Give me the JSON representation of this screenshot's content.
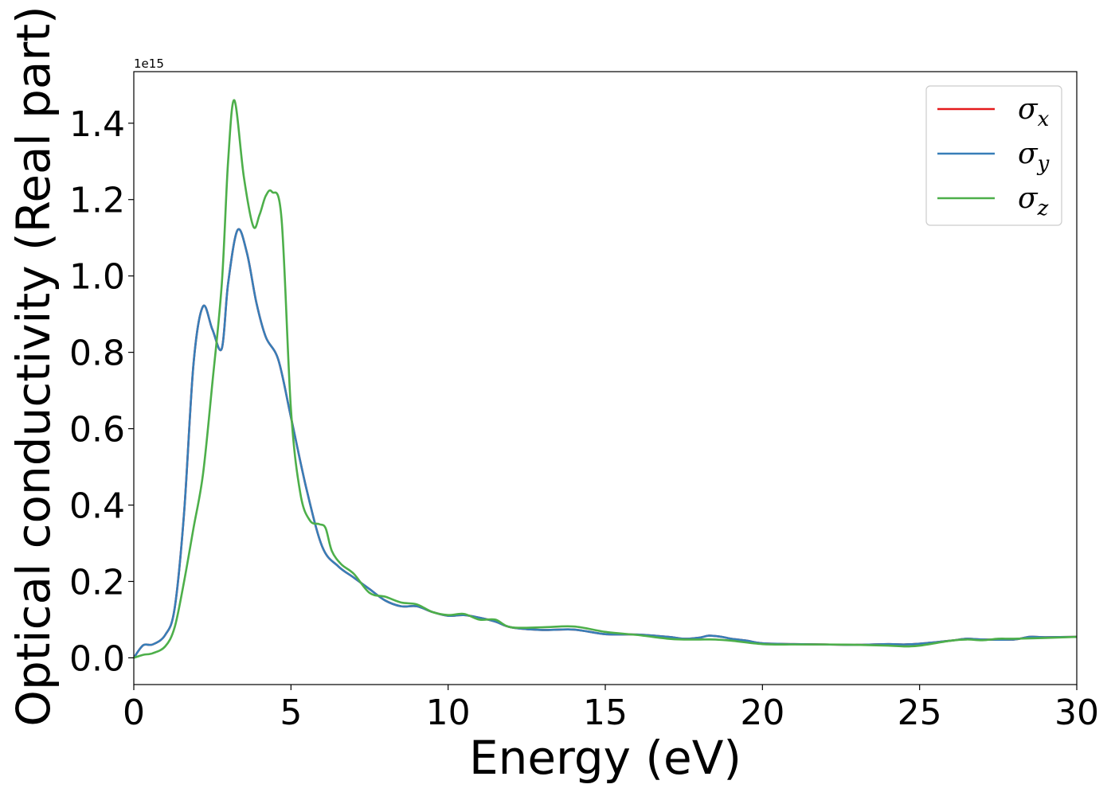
{
  "chart_data": {
    "type": "line",
    "xlabel": "Energy (eV)",
    "ylabel": "Optical conductivity (Real part)",
    "offset_text": "1e15",
    "xlim": [
      0,
      30
    ],
    "ylim": [
      -0.07,
      1.535
    ],
    "x_ticks": [
      0,
      5,
      10,
      15,
      20,
      25,
      30
    ],
    "x_tick_labels": [
      "0",
      "5",
      "10",
      "15",
      "20",
      "25",
      "30"
    ],
    "y_ticks": [
      0.0,
      0.2,
      0.4,
      0.6,
      0.8,
      1.0,
      1.2,
      1.4
    ],
    "y_tick_labels": [
      "0.0",
      "0.2",
      "0.4",
      "0.6",
      "0.8",
      "1.0",
      "1.2",
      "1.4"
    ],
    "grid": false,
    "legend_position": "upper right",
    "legend": [
      {
        "base": "σ",
        "sub": "x",
        "color": "#e41a1c"
      },
      {
        "base": "σ",
        "sub": "y",
        "color": "#377eb8"
      },
      {
        "base": "σ",
        "sub": "z",
        "color": "#4daf4a"
      }
    ],
    "series": [
      {
        "name": "σx",
        "color": "#e41a1c",
        "x": [
          0,
          0.3,
          0.6,
          1.0,
          1.3,
          1.6,
          1.9,
          2.2,
          2.5,
          2.8,
          3.0,
          3.3,
          3.6,
          3.9,
          4.2,
          4.6,
          5.0,
          5.5,
          6.0,
          6.5,
          7.0,
          7.5,
          8.0,
          8.5,
          9.0,
          9.5,
          10.0,
          10.5,
          11.0,
          11.5,
          12.0,
          13.0,
          14.0,
          15.0,
          16.0,
          17.0,
          17.5,
          18.0,
          18.3,
          18.7,
          19.0,
          19.5,
          20.0,
          21.0,
          22.0,
          23.0,
          24.0,
          24.5,
          25.0,
          26.0,
          26.5,
          27.0,
          28.0,
          28.5,
          29.0,
          30.0
        ],
        "y": [
          0.0,
          0.033,
          0.035,
          0.06,
          0.13,
          0.38,
          0.77,
          0.92,
          0.86,
          0.81,
          0.98,
          1.12,
          1.06,
          0.93,
          0.84,
          0.78,
          0.63,
          0.44,
          0.29,
          0.24,
          0.21,
          0.18,
          0.15,
          0.135,
          0.135,
          0.12,
          0.11,
          0.112,
          0.105,
          0.095,
          0.08,
          0.073,
          0.074,
          0.062,
          0.061,
          0.055,
          0.05,
          0.053,
          0.058,
          0.055,
          0.05,
          0.045,
          0.038,
          0.036,
          0.035,
          0.034,
          0.036,
          0.035,
          0.037,
          0.045,
          0.05,
          0.048,
          0.048,
          0.055,
          0.054,
          0.055
        ]
      },
      {
        "name": "σy",
        "color": "#377eb8",
        "x": [
          0,
          0.3,
          0.6,
          1.0,
          1.3,
          1.6,
          1.9,
          2.2,
          2.5,
          2.8,
          3.0,
          3.3,
          3.6,
          3.9,
          4.2,
          4.6,
          5.0,
          5.5,
          6.0,
          6.5,
          7.0,
          7.5,
          8.0,
          8.5,
          9.0,
          9.5,
          10.0,
          10.5,
          11.0,
          11.5,
          12.0,
          13.0,
          14.0,
          15.0,
          16.0,
          17.0,
          17.5,
          18.0,
          18.3,
          18.7,
          19.0,
          19.5,
          20.0,
          21.0,
          22.0,
          23.0,
          24.0,
          24.5,
          25.0,
          26.0,
          26.5,
          27.0,
          28.0,
          28.5,
          29.0,
          30.0
        ],
        "y": [
          0.0,
          0.033,
          0.035,
          0.06,
          0.13,
          0.38,
          0.77,
          0.92,
          0.86,
          0.81,
          0.98,
          1.12,
          1.06,
          0.93,
          0.84,
          0.78,
          0.63,
          0.44,
          0.29,
          0.24,
          0.21,
          0.18,
          0.15,
          0.135,
          0.135,
          0.12,
          0.11,
          0.112,
          0.105,
          0.095,
          0.08,
          0.073,
          0.074,
          0.062,
          0.061,
          0.055,
          0.05,
          0.053,
          0.058,
          0.055,
          0.05,
          0.045,
          0.038,
          0.036,
          0.035,
          0.034,
          0.036,
          0.035,
          0.037,
          0.045,
          0.05,
          0.048,
          0.048,
          0.055,
          0.054,
          0.055
        ]
      },
      {
        "name": "σz",
        "color": "#4daf4a",
        "x": [
          0,
          0.3,
          0.6,
          1.0,
          1.3,
          1.6,
          1.9,
          2.2,
          2.5,
          2.8,
          3.0,
          3.2,
          3.5,
          3.8,
          4.0,
          4.2,
          4.4,
          4.7,
          5.0,
          5.3,
          5.6,
          5.9,
          6.1,
          6.3,
          6.6,
          7.0,
          7.5,
          8.0,
          8.5,
          9.0,
          9.5,
          10.0,
          10.5,
          11.0,
          11.5,
          12.0,
          13.0,
          14.0,
          15.0,
          16.0,
          17.0,
          17.5,
          18.0,
          18.5,
          19.0,
          20.0,
          21.0,
          22.0,
          23.0,
          24.0,
          24.5,
          25.0,
          26.0,
          26.5,
          27.0,
          27.5,
          28.0,
          29.0,
          30.0
        ],
        "y": [
          0.0,
          0.008,
          0.012,
          0.03,
          0.08,
          0.2,
          0.34,
          0.48,
          0.72,
          0.98,
          1.3,
          1.46,
          1.26,
          1.13,
          1.16,
          1.21,
          1.22,
          1.15,
          0.65,
          0.43,
          0.36,
          0.35,
          0.34,
          0.28,
          0.245,
          0.22,
          0.17,
          0.16,
          0.145,
          0.14,
          0.12,
          0.112,
          0.115,
          0.1,
          0.1,
          0.08,
          0.08,
          0.082,
          0.068,
          0.06,
          0.05,
          0.048,
          0.048,
          0.048,
          0.045,
          0.036,
          0.035,
          0.035,
          0.034,
          0.032,
          0.03,
          0.032,
          0.045,
          0.048,
          0.046,
          0.05,
          0.05,
          0.052,
          0.055
        ]
      }
    ]
  }
}
